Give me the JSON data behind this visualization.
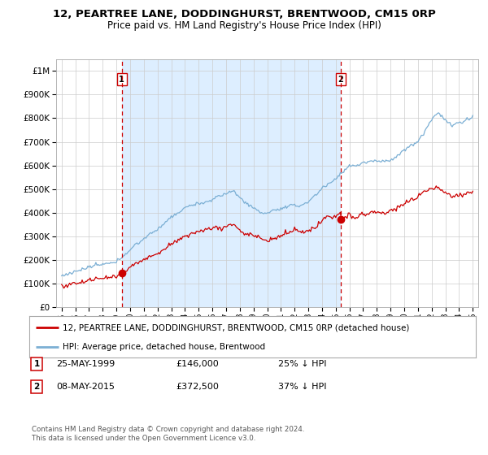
{
  "title_line1": "12, PEARTREE LANE, DODDINGHURST, BRENTWOOD, CM15 0RP",
  "title_line2": "Price paid vs. HM Land Registry's House Price Index (HPI)",
  "sale1_date": "25-MAY-1999",
  "sale1_price": 146000,
  "sale1_label": "25% ↓ HPI",
  "sale2_date": "08-MAY-2015",
  "sale2_price": 372500,
  "sale2_label": "37% ↓ HPI",
  "sale1_x": 1999.39,
  "sale2_x": 2015.36,
  "legend_line1": "12, PEARTREE LANE, DODDINGHURST, BRENTWOOD, CM15 0RP (detached house)",
  "legend_line2": "HPI: Average price, detached house, Brentwood",
  "footer1": "Contains HM Land Registry data © Crown copyright and database right 2024.",
  "footer2": "This data is licensed under the Open Government Licence v3.0.",
  "red_color": "#cc0000",
  "blue_color": "#7bafd4",
  "shade_color": "#ddeeff",
  "background_color": "#ffffff",
  "grid_color": "#cccccc",
  "ylim_max": 1050000,
  "ylim_min": 0
}
